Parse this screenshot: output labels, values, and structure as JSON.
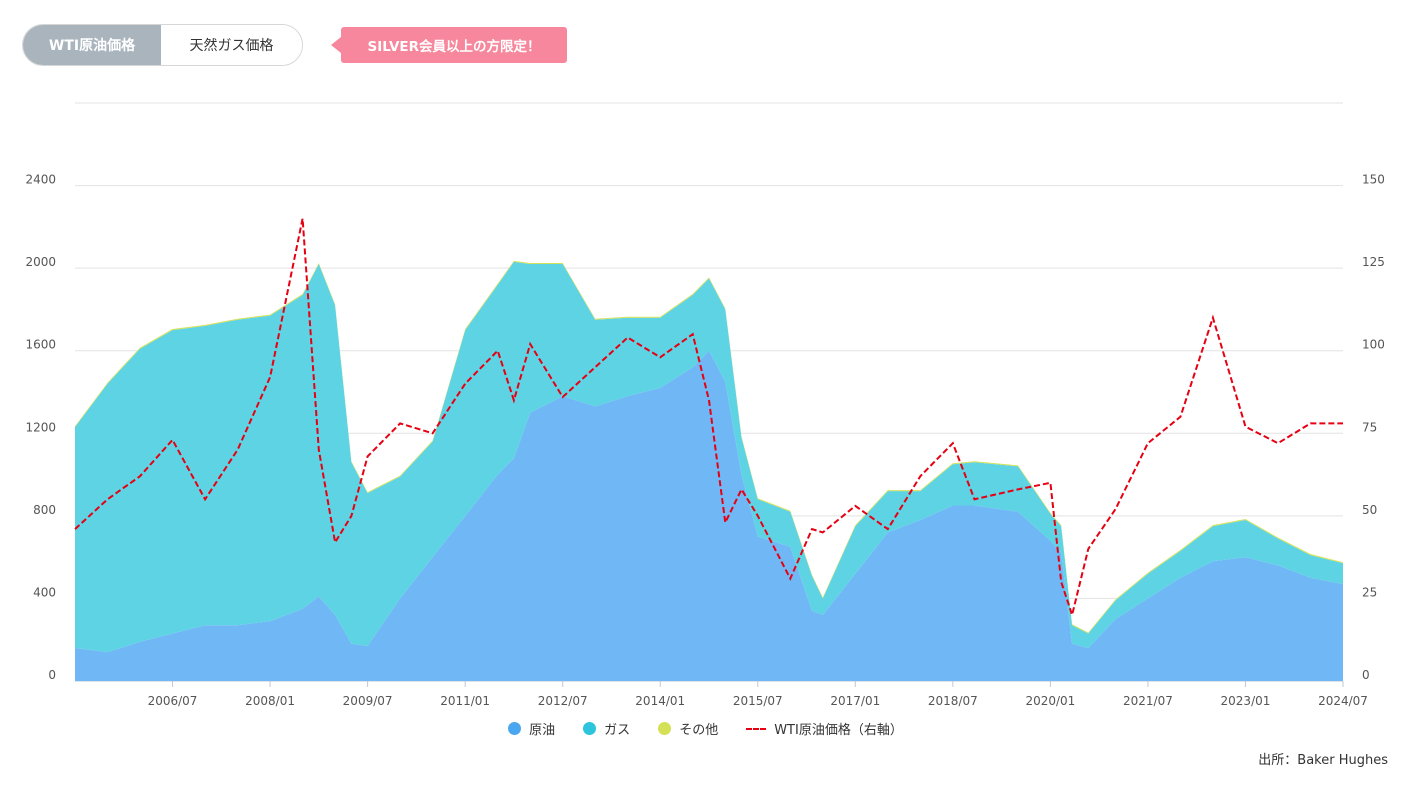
{
  "tabs": [
    {
      "label": "WTI原油価格",
      "active": true
    },
    {
      "label": "天然ガス価格",
      "active": false
    }
  ],
  "badge": {
    "text": "SILVER会員以上の方限定！",
    "color": "#f6879c"
  },
  "source": "出所：Baker Hughes",
  "legend": [
    {
      "label": "原油",
      "color": "#5aaef0"
    },
    {
      "label": "ガス",
      "color": "#3ec6dc"
    },
    {
      "label": "その他",
      "color": "#d4e157"
    },
    {
      "label": "WTI原油価格（右軸）",
      "color": "#e60012"
    }
  ],
  "chart_data": {
    "type": "area",
    "x_tick_labels": [
      "2006/07",
      "2008/01",
      "2009/07",
      "2011/01",
      "2012/07",
      "2014/01",
      "2015/07",
      "2017/01",
      "2018/07",
      "2020/01",
      "2021/07",
      "2023/01",
      "2024/07"
    ],
    "y_left_ticks": [
      "0",
      "400",
      "800",
      "1200",
      "1600",
      "2000",
      "2400"
    ],
    "y_right_ticks": [
      "0",
      "25",
      "50",
      "75",
      "100",
      "125",
      "150"
    ],
    "ylim_left": [
      0,
      2800
    ],
    "ylim_right": [
      0,
      175
    ],
    "x": [
      "2005/01",
      "2005/07",
      "2006/01",
      "2006/07",
      "2007/01",
      "2007/07",
      "2008/01",
      "2008/07",
      "2008/10",
      "2009/01",
      "2009/04",
      "2009/07",
      "2010/01",
      "2010/07",
      "2011/01",
      "2011/07",
      "2011/10",
      "2012/01",
      "2012/07",
      "2013/01",
      "2013/07",
      "2014/01",
      "2014/07",
      "2014/10",
      "2015/01",
      "2015/04",
      "2015/07",
      "2016/01",
      "2016/05",
      "2016/07",
      "2017/01",
      "2017/07",
      "2018/01",
      "2018/07",
      "2018/11",
      "2019/07",
      "2020/01",
      "2020/03",
      "2020/05",
      "2020/08",
      "2021/01",
      "2021/07",
      "2022/01",
      "2022/07",
      "2023/01",
      "2023/07",
      "2024/01",
      "2024/07"
    ],
    "series": [
      {
        "name": "原油",
        "color": "#6fb8f5",
        "values": [
          160,
          140,
          190,
          230,
          270,
          270,
          290,
          350,
          410,
          320,
          180,
          170,
          400,
          600,
          800,
          1000,
          1080,
          1300,
          1380,
          1330,
          1380,
          1420,
          1520,
          1600,
          1450,
          1000,
          700,
          650,
          340,
          320,
          520,
          720,
          780,
          850,
          850,
          820,
          680,
          620,
          180,
          160,
          300,
          400,
          500,
          580,
          600,
          560,
          500,
          470
        ]
      },
      {
        "name": "ガス",
        "color": "#5dd3e4",
        "values": [
          1070,
          1300,
          1420,
          1470,
          1450,
          1480,
          1480,
          1520,
          1610,
          1500,
          880,
          740,
          590,
          560,
          900,
          920,
          950,
          720,
          640,
          420,
          380,
          340,
          350,
          350,
          350,
          180,
          180,
          170,
          170,
          80,
          230,
          200,
          140,
          200,
          210,
          220,
          130,
          130,
          90,
          70,
          90,
          120,
          130,
          170,
          180,
          130,
          110,
          100
        ]
      },
      {
        "name": "その他",
        "color": "#d4e157",
        "values": [
          5,
          5,
          5,
          5,
          5,
          5,
          5,
          5,
          5,
          5,
          5,
          5,
          5,
          5,
          5,
          5,
          5,
          5,
          5,
          5,
          5,
          5,
          5,
          5,
          5,
          5,
          5,
          5,
          5,
          5,
          5,
          5,
          5,
          5,
          5,
          5,
          5,
          5,
          5,
          5,
          5,
          5,
          5,
          5,
          5,
          5,
          5,
          5
        ]
      },
      {
        "name": "WTI原油価格（右軸）",
        "axis": "right",
        "color": "#e60012",
        "values": [
          46,
          55,
          62,
          73,
          55,
          70,
          92,
          140,
          70,
          42,
          50,
          68,
          78,
          75,
          90,
          100,
          85,
          102,
          86,
          95,
          104,
          98,
          105,
          85,
          48,
          58,
          50,
          31,
          46,
          45,
          53,
          46,
          62,
          72,
          55,
          58,
          60,
          30,
          20,
          40,
          52,
          72,
          80,
          110,
          77,
          72,
          78,
          78
        ]
      }
    ]
  }
}
